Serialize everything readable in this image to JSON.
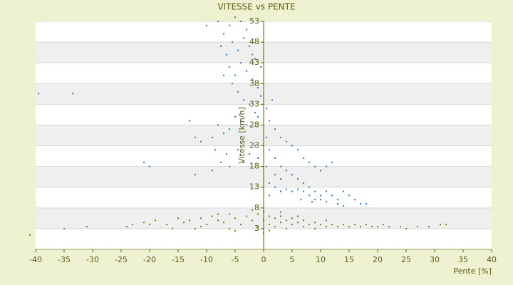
{
  "chart_data": {
    "type": "scatter",
    "title": "VITESSE vs PENTE",
    "xlabel": "Pente [%]",
    "ylabel": "Vitesse [km/h]",
    "xlim": [
      -40,
      40
    ],
    "ylim": [
      -2,
      53
    ],
    "xticks": [
      -40,
      -35,
      -30,
      -25,
      -20,
      -15,
      -10,
      -5,
      0,
      5,
      10,
      15,
      20,
      25,
      30,
      35,
      40
    ],
    "yticks": [
      3,
      8,
      13,
      18,
      23,
      28,
      33,
      38,
      43,
      48,
      53
    ],
    "grid": true,
    "series": [
      {
        "color": "#2f7fd0",
        "x": [
          -39.5,
          -33.5,
          -10,
          -8,
          -7,
          -6,
          -5,
          -4,
          -3,
          -7.5,
          -6.5,
          -5.5,
          -4.5,
          -3.5,
          -2.5,
          -1.5,
          -6,
          -5,
          -4,
          -3,
          -2,
          -1,
          -0.5,
          -5.5,
          -4.5,
          -3.5,
          -7,
          -2.5,
          -1.5,
          -5,
          -13,
          -12,
          -11,
          -9,
          -8,
          -7,
          -6,
          -4,
          -3,
          -1,
          -8.5,
          -7.5,
          -6.5,
          -4.5,
          -3.5,
          -2.5,
          -1.5,
          -21,
          -20,
          -12,
          -9,
          -6,
          -1,
          0.5,
          1,
          2,
          3,
          4,
          5,
          6,
          7,
          8,
          9,
          10,
          11,
          12,
          1,
          2,
          3,
          4,
          5,
          6,
          7,
          8,
          9,
          10,
          11,
          12,
          13,
          14,
          15,
          16,
          17,
          18,
          1,
          2,
          3,
          4,
          5,
          6,
          7,
          8,
          9,
          10,
          11,
          13,
          14,
          6.5,
          8.5,
          2,
          3,
          1,
          0.5,
          0.5,
          1.5,
          -0.5,
          -2
        ],
        "y": [
          35.6,
          35.6,
          52,
          53,
          50,
          52,
          54,
          53,
          51,
          47,
          45,
          48,
          46,
          49,
          47,
          44,
          42,
          40,
          43,
          41,
          39,
          37,
          35,
          38,
          36,
          34,
          40,
          33,
          31,
          30,
          29,
          25,
          24,
          25,
          28,
          26,
          27,
          29,
          28,
          30,
          22,
          19,
          21,
          22,
          19,
          21,
          23,
          19,
          18,
          16,
          17,
          18,
          20,
          32,
          29,
          27,
          25,
          24,
          23,
          22,
          20,
          19,
          18,
          17,
          18,
          19,
          22,
          20,
          18,
          17,
          16,
          15,
          14,
          13,
          12,
          11,
          12,
          11,
          10,
          12,
          11,
          10,
          9,
          9,
          14,
          13,
          12,
          12.5,
          12,
          12.5,
          12,
          11,
          10,
          10,
          9.5,
          9,
          8.5,
          10,
          9.5,
          16,
          15,
          11,
          18,
          25,
          34,
          42,
          45
        ]
      },
      {
        "color": "#7a7a10",
        "x": [
          -41,
          -35,
          -31,
          -24,
          -23,
          -21,
          -19,
          -17,
          -15,
          -14,
          -13,
          -12,
          -11,
          -10,
          -9,
          -8,
          -7,
          -6,
          -5,
          -4,
          -3,
          -2,
          -1,
          -1,
          0,
          0,
          0,
          1,
          1,
          2,
          2,
          3,
          3,
          4,
          4,
          5,
          5,
          6,
          7,
          7,
          8,
          9,
          10,
          11,
          12,
          13,
          14,
          15,
          16,
          17,
          18,
          19,
          20,
          21,
          22,
          24,
          25,
          27,
          29,
          31,
          32,
          -6,
          -8,
          -2,
          1,
          -16,
          -20,
          -11,
          -5,
          3,
          6,
          9,
          11
        ],
        "y": [
          1.5,
          3,
          3.5,
          3.5,
          4,
          4.5,
          5,
          4,
          5.5,
          4.5,
          5,
          3,
          5.5,
          4,
          6,
          5,
          4.5,
          6.5,
          5.5,
          4,
          6,
          5,
          6.5,
          3.5,
          2,
          7,
          5,
          6,
          4,
          5.5,
          3.5,
          6,
          4.5,
          5,
          3,
          5.5,
          4,
          4.5,
          5,
          3.5,
          4,
          4.5,
          4,
          3.5,
          4,
          3.5,
          4,
          3.5,
          4,
          3.5,
          4,
          3.5,
          3.5,
          4,
          3.5,
          3.5,
          3,
          3.5,
          3.5,
          4,
          4,
          3,
          6.5,
          7.5,
          2.5,
          3,
          4,
          3.5,
          2.5,
          7,
          6,
          3,
          5
        ]
      }
    ]
  }
}
